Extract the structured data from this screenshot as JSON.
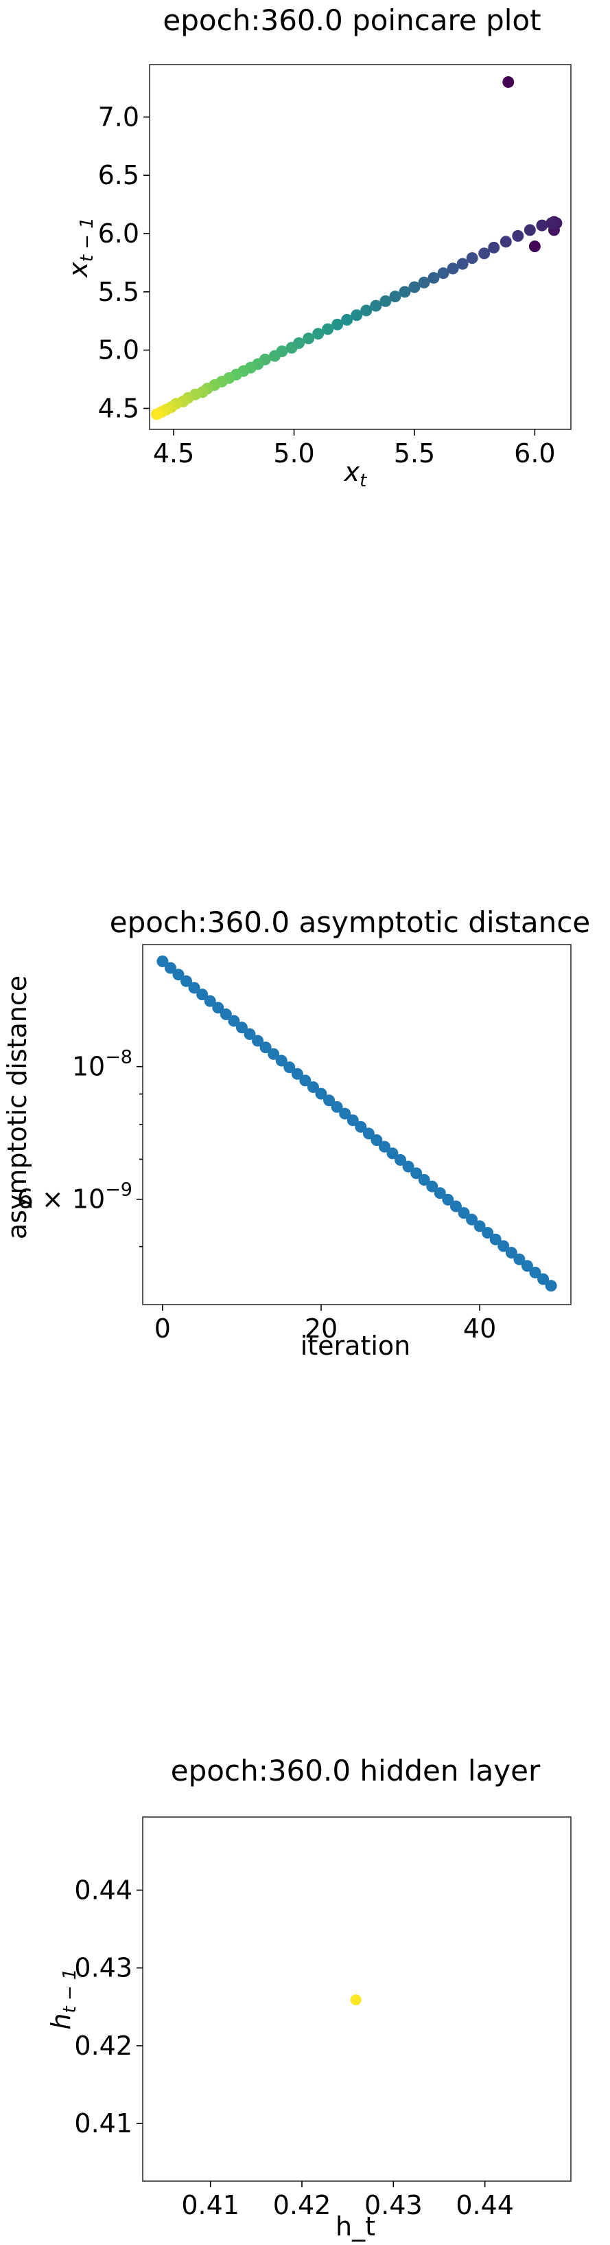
{
  "chart_data": [
    {
      "type": "scatter",
      "title": "epoch:360.0 poincare plot",
      "xlabel": "x_t",
      "ylabel": "x_{t-1}",
      "xlim": [
        4.4,
        6.15
      ],
      "ylim": [
        4.32,
        7.45
      ],
      "xticks": [
        4.5,
        5.0,
        5.5,
        6.0
      ],
      "xtick_labels": [
        "4.5",
        "5.0",
        "5.5",
        "6.0"
      ],
      "yticks": [
        4.5,
        5.0,
        5.5,
        6.0,
        6.5,
        7.0
      ],
      "ytick_labels": [
        "4.5",
        "5.0",
        "5.5",
        "6.0",
        "6.5",
        "7.0"
      ],
      "colormap": "viridis",
      "points": [
        {
          "x": 5.89,
          "y": 7.3
        },
        {
          "x": 6.0,
          "y": 5.89
        },
        {
          "x": 6.08,
          "y": 6.1
        },
        {
          "x": 6.08,
          "y": 6.03
        },
        {
          "x": 6.09,
          "y": 6.09
        },
        {
          "x": 6.07,
          "y": 6.09
        },
        {
          "x": 6.03,
          "y": 6.07
        },
        {
          "x": 5.98,
          "y": 6.03
        },
        {
          "x": 5.93,
          "y": 5.98
        },
        {
          "x": 5.88,
          "y": 5.93
        },
        {
          "x": 5.83,
          "y": 5.88
        },
        {
          "x": 5.79,
          "y": 5.83
        },
        {
          "x": 5.74,
          "y": 5.79
        },
        {
          "x": 5.7,
          "y": 5.74
        },
        {
          "x": 5.66,
          "y": 5.7
        },
        {
          "x": 5.62,
          "y": 5.66
        },
        {
          "x": 5.58,
          "y": 5.62
        },
        {
          "x": 5.54,
          "y": 5.58
        },
        {
          "x": 5.5,
          "y": 5.54
        },
        {
          "x": 5.46,
          "y": 5.5
        },
        {
          "x": 5.42,
          "y": 5.46
        },
        {
          "x": 5.38,
          "y": 5.42
        },
        {
          "x": 5.34,
          "y": 5.38
        },
        {
          "x": 5.3,
          "y": 5.34
        },
        {
          "x": 5.26,
          "y": 5.3
        },
        {
          "x": 5.22,
          "y": 5.26
        },
        {
          "x": 5.18,
          "y": 5.22
        },
        {
          "x": 5.14,
          "y": 5.18
        },
        {
          "x": 5.1,
          "y": 5.14
        },
        {
          "x": 5.06,
          "y": 5.1
        },
        {
          "x": 5.02,
          "y": 5.06
        },
        {
          "x": 4.99,
          "y": 5.02
        },
        {
          "x": 4.95,
          "y": 4.99
        },
        {
          "x": 4.92,
          "y": 4.95
        },
        {
          "x": 4.88,
          "y": 4.92
        },
        {
          "x": 4.85,
          "y": 4.88
        },
        {
          "x": 4.82,
          "y": 4.85
        },
        {
          "x": 4.79,
          "y": 4.82
        },
        {
          "x": 4.76,
          "y": 4.79
        },
        {
          "x": 4.73,
          "y": 4.76
        },
        {
          "x": 4.7,
          "y": 4.73
        },
        {
          "x": 4.67,
          "y": 4.7
        },
        {
          "x": 4.64,
          "y": 4.67
        },
        {
          "x": 4.62,
          "y": 4.64
        },
        {
          "x": 4.59,
          "y": 4.62
        },
        {
          "x": 4.56,
          "y": 4.59
        },
        {
          "x": 4.54,
          "y": 4.56
        },
        {
          "x": 4.51,
          "y": 4.54
        },
        {
          "x": 4.49,
          "y": 4.51
        },
        {
          "x": 4.47,
          "y": 4.49
        },
        {
          "x": 4.45,
          "y": 4.47
        },
        {
          "x": 4.43,
          "y": 4.45
        }
      ]
    },
    {
      "type": "scatter",
      "title": "epoch:360.0 asymptotic distance",
      "xlabel": "iteration",
      "ylabel": "asymptotic distance",
      "yscale": "log",
      "xlim": [
        -2.5,
        51.5
      ],
      "ylim": [
        4e-09,
        1.6e-08
      ],
      "xticks": [
        0,
        20,
        40
      ],
      "xtick_labels": [
        "0",
        "20",
        "40"
      ],
      "ytick_labels": [
        {
          "value": 1e-08,
          "base": "10",
          "exponent": "−8"
        },
        {
          "value": 6e-09,
          "base": "6 × 10",
          "exponent": "−9"
        }
      ],
      "y_minor_ticks": [
        5e-09,
        7e-09,
        8e-09,
        9e-09
      ],
      "color": "#1f77b4",
      "y_start": 1.5e-08,
      "y_end": 4.3e-09,
      "n_points": 50
    },
    {
      "type": "scatter",
      "title": "epoch:360.0 hidden layer",
      "xlabel": "h_t",
      "ylabel": "h_{t-1}",
      "xlim": [
        0.4026,
        0.4494
      ],
      "ylim": [
        0.4026,
        0.4494
      ],
      "xticks": [
        0.41,
        0.42,
        0.43,
        0.44
      ],
      "xtick_labels": [
        "0.41",
        "0.42",
        "0.43",
        "0.44"
      ],
      "yticks": [
        0.41,
        0.42,
        0.43,
        0.44
      ],
      "ytick_labels": [
        "0.41",
        "0.42",
        "0.43",
        "0.44"
      ],
      "points": [
        {
          "x": 0.4259,
          "y": 0.4259
        }
      ],
      "color": "#fde725"
    }
  ]
}
